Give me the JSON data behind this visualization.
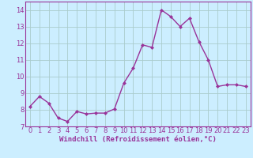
{
  "x": [
    0,
    1,
    2,
    3,
    4,
    5,
    6,
    7,
    8,
    9,
    10,
    11,
    12,
    13,
    14,
    15,
    16,
    17,
    18,
    19,
    20,
    21,
    22,
    23
  ],
  "y": [
    8.2,
    8.8,
    8.4,
    7.5,
    7.3,
    7.9,
    7.75,
    7.8,
    7.8,
    8.05,
    9.6,
    10.5,
    11.9,
    11.75,
    14.0,
    13.6,
    13.0,
    13.5,
    12.1,
    11.0,
    9.4,
    9.5,
    9.5,
    9.4
  ],
  "line_color": "#993399",
  "marker": "D",
  "markersize": 2.0,
  "linewidth": 1.0,
  "xlabel": "Windchill (Refroidissement éolien,°C)",
  "ylim": [
    7,
    14.5
  ],
  "yticks": [
    7,
    8,
    9,
    10,
    11,
    12,
    13,
    14
  ],
  "xticks": [
    0,
    1,
    2,
    3,
    4,
    5,
    6,
    7,
    8,
    9,
    10,
    11,
    12,
    13,
    14,
    15,
    16,
    17,
    18,
    19,
    20,
    21,
    22,
    23
  ],
  "background_color": "#cceeff",
  "grid_color": "#aacccc",
  "xlabel_fontsize": 6.5,
  "tick_fontsize": 6.0,
  "spine_color": "#993399"
}
